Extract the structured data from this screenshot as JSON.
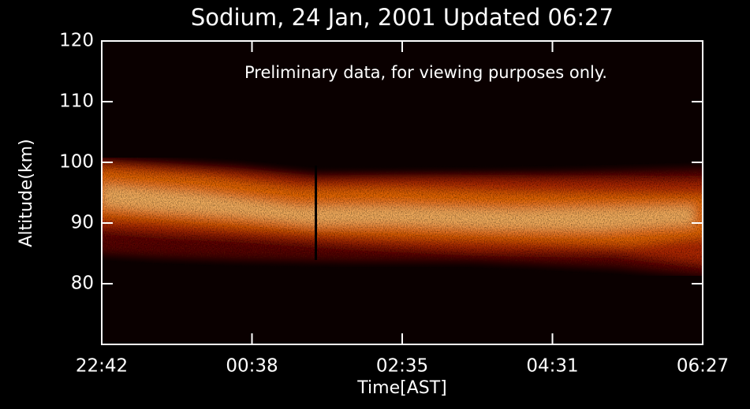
{
  "chart_data": {
    "type": "heatmap",
    "title": "Sodium, 24 Jan, 2001 Updated 06:27",
    "annotation": "Preliminary data, for viewing purposes only.",
    "xlabel": "Time[AST]",
    "ylabel": "Altitude(km)",
    "xticks": [
      "22:42",
      "00:38",
      "02:35",
      "04:31",
      "06:27"
    ],
    "ylim": [
      70,
      120
    ],
    "yticks": [
      80,
      90,
      100,
      110,
      120
    ]
  }
}
